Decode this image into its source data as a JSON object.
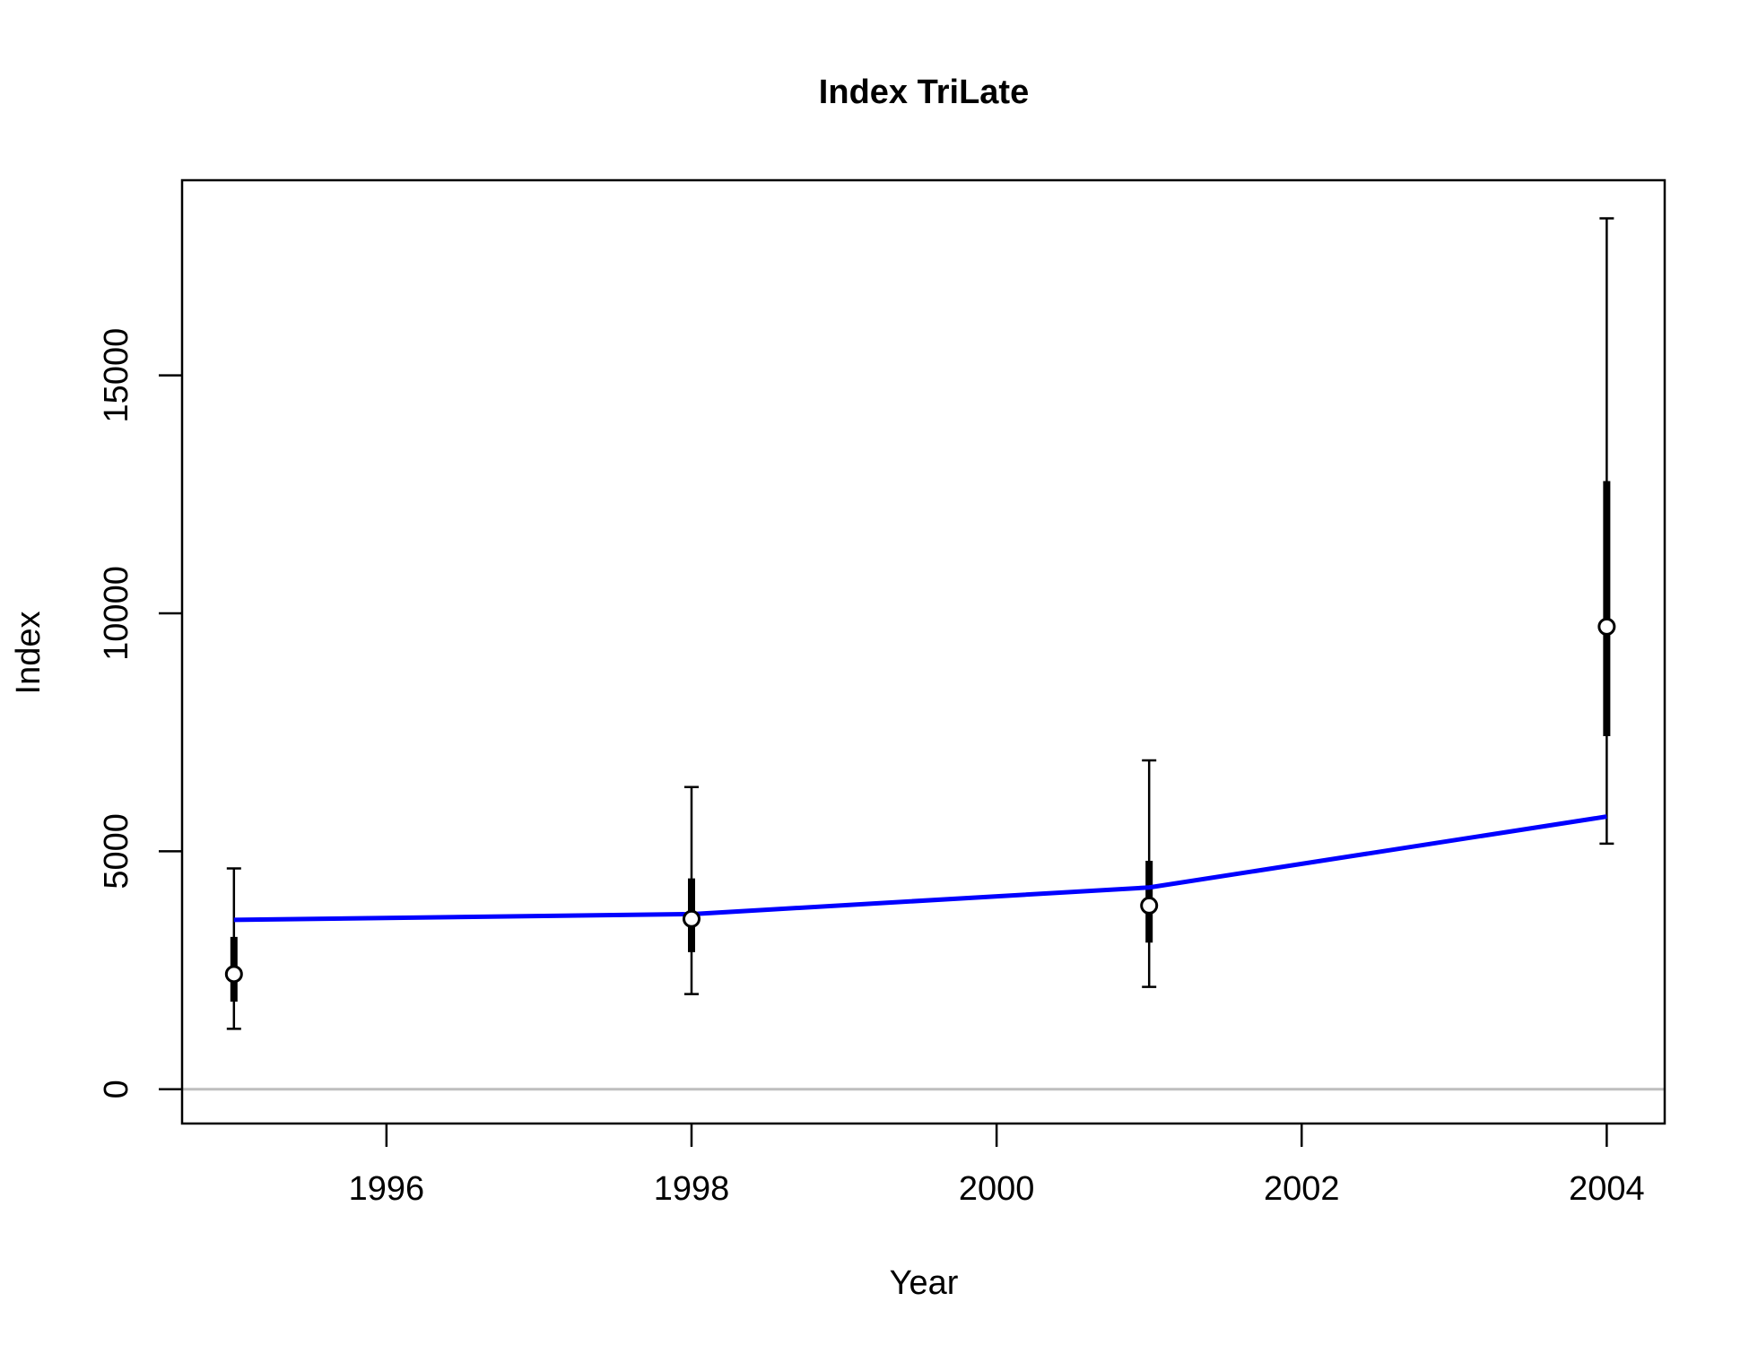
{
  "chart_data": {
    "type": "line",
    "title": "Index TriLate",
    "xlabel": "Year",
    "ylabel": "Index",
    "xlim": [
      1994.66,
      2004.38
    ],
    "ylim": [
      -720,
      19100
    ],
    "x_ticks": [
      1996,
      1998,
      2000,
      2002,
      2004
    ],
    "y_ticks": [
      0,
      5000,
      10000,
      15000
    ],
    "grid": false,
    "legend": "none",
    "zero_line": 0,
    "observed": {
      "x": [
        1995,
        1998,
        2001,
        2004
      ],
      "y": [
        2420,
        3580,
        3860,
        9720
      ],
      "ci_outer_low": [
        1270,
        2000,
        2150,
        5160
      ],
      "ci_outer_high": [
        4640,
        6350,
        6910,
        18300
      ],
      "ci_inner_low": [
        1840,
        2880,
        3080,
        7420
      ],
      "ci_inner_high": [
        3200,
        4430,
        4800,
        12780
      ]
    },
    "series": [
      {
        "values": [
          3560,
          3680,
          4240,
          5730
        ],
        "x": [
          1995,
          1998,
          2001,
          2004
        ]
      }
    ],
    "colors": {
      "fit_line": "#0000ff",
      "points": "#000000",
      "zero_line": "#bebebe",
      "axes": "#000000"
    }
  }
}
